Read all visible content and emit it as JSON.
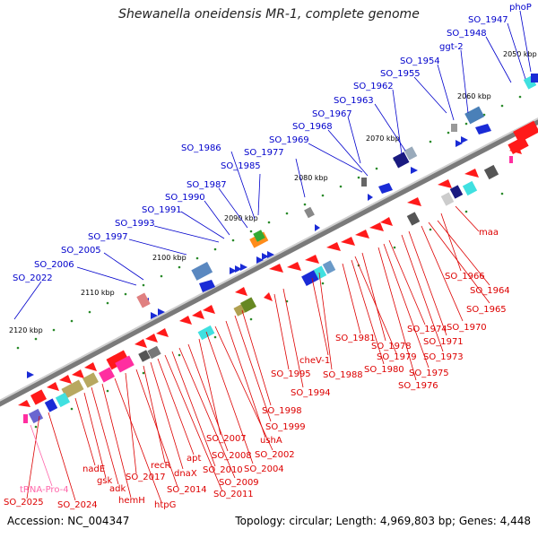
{
  "title": "Shewanella oneidensis MR-1, complete genome",
  "footer": {
    "accession_label": "Accession: NC_004347",
    "summary": "Topology: circular; Length: 4,969,803 bp; Genes: 4,448"
  },
  "colors": {
    "backbone": "#8a8a8a",
    "forward_label": "#0000cc",
    "reverse_label": "#dd0000",
    "rna_label": "#ff66aa",
    "tick": "#228822"
  },
  "ticks": [
    "2050 kbp",
    "2060 kbp",
    "2070 kbp",
    "2080 kbp",
    "2090 kbp",
    "2100 kbp",
    "2110 kbp",
    "2120 kbp"
  ],
  "forward_labels": [
    "phoP",
    "SO_1947",
    "SO_1948",
    "ggt-2",
    "SO_1954",
    "SO_1955",
    "SO_1962",
    "SO_1963",
    "SO_1967",
    "SO_1968",
    "SO_1969",
    "SO_1977",
    "SO_1985",
    "SO_1986",
    "SO_1987",
    "SO_1990",
    "SO_1991",
    "SO_1993",
    "SO_1997",
    "SO_2005",
    "SO_2006",
    "SO_2022"
  ],
  "reverse_labels": [
    "maa",
    "SO_1966",
    "SO_1964",
    "SO_1965",
    "SO_1970",
    "SO_1971",
    "SO_1973",
    "SO_1974",
    "SO_1975",
    "SO_1976",
    "SO_1978",
    "SO_1979",
    "SO_1980",
    "SO_1981",
    "SO_1988",
    "cheV-1",
    "SO_1994",
    "SO_1995",
    "SO_1998",
    "SO_1999",
    "ushA",
    "SO_2002",
    "SO_2004",
    "SO_2007",
    "SO_2008",
    "SO_2009",
    "SO_2010",
    "SO_2011",
    "apt",
    "dnaX",
    "recR",
    "SO_2014",
    "SO_2017",
    "htpG",
    "hemH",
    "adk",
    "gsk",
    "nadE",
    "SO_2024",
    "SO_2025"
  ],
  "rna_labels": [
    "tRNA-Pro-4"
  ]
}
